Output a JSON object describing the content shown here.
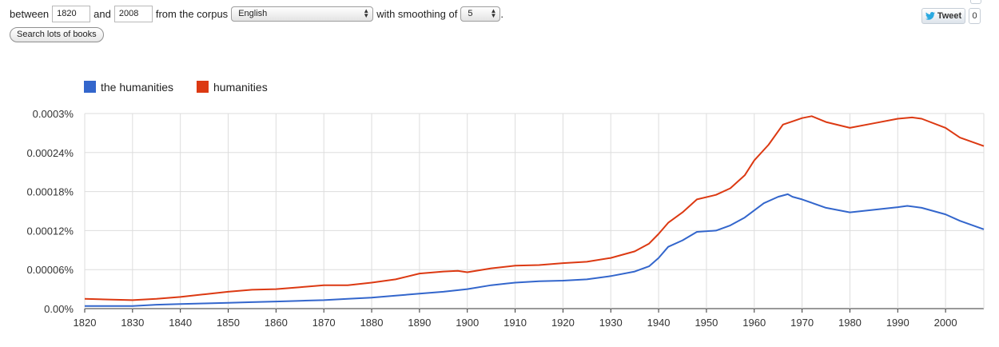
{
  "controls": {
    "between_label": "between",
    "year_start": "1820",
    "and_label": "and",
    "year_end": "2008",
    "corpus_label": "from the corpus",
    "corpus_value": "English",
    "smoothing_label": "with smoothing of",
    "smoothing_value": "5",
    "period": ".",
    "search_button": "Search lots of books"
  },
  "social": {
    "tweet_label": "Tweet",
    "tweet_count": "0"
  },
  "colors": {
    "series_blue": "#3366cc",
    "series_red": "#dc3912",
    "grid": "#dddddd",
    "twitter_bird": "#2aa9e0"
  },
  "chart_data": {
    "type": "line",
    "title": "",
    "xlabel": "",
    "ylabel": "",
    "xlim": [
      1820,
      2008
    ],
    "ylim": [
      0,
      0.0003
    ],
    "grid": true,
    "legend_position": "top-left",
    "x_ticks": [
      "1820",
      "1830",
      "1840",
      "1850",
      "1860",
      "1870",
      "1880",
      "1890",
      "1900",
      "1910",
      "1920",
      "1930",
      "1940",
      "1950",
      "1960",
      "1970",
      "1980",
      "1990",
      "2000"
    ],
    "y_ticks": [
      "0.00%",
      "0.00006%",
      "0.00012%",
      "0.00018%",
      "0.00024%",
      "0.0003%"
    ],
    "y_tick_values": [
      0,
      6e-05,
      0.00012,
      0.00018,
      0.00024,
      0.0003
    ],
    "series": [
      {
        "name": "the humanities",
        "color": "#3366cc",
        "points": [
          [
            1820,
            4e-06
          ],
          [
            1825,
            4e-06
          ],
          [
            1830,
            4e-06
          ],
          [
            1835,
            6e-06
          ],
          [
            1840,
            7e-06
          ],
          [
            1845,
            8e-06
          ],
          [
            1850,
            9e-06
          ],
          [
            1855,
            1e-05
          ],
          [
            1860,
            1.1e-05
          ],
          [
            1865,
            1.2e-05
          ],
          [
            1870,
            1.3e-05
          ],
          [
            1875,
            1.5e-05
          ],
          [
            1880,
            1.7e-05
          ],
          [
            1885,
            2e-05
          ],
          [
            1890,
            2.3e-05
          ],
          [
            1895,
            2.6e-05
          ],
          [
            1900,
            3e-05
          ],
          [
            1905,
            3.6e-05
          ],
          [
            1910,
            4e-05
          ],
          [
            1915,
            4.2e-05
          ],
          [
            1920,
            4.3e-05
          ],
          [
            1925,
            4.5e-05
          ],
          [
            1930,
            5e-05
          ],
          [
            1935,
            5.7e-05
          ],
          [
            1938,
            6.5e-05
          ],
          [
            1940,
            7.8e-05
          ],
          [
            1942,
            9.5e-05
          ],
          [
            1945,
            0.000105
          ],
          [
            1948,
            0.000118
          ],
          [
            1952,
            0.00012
          ],
          [
            1955,
            0.000128
          ],
          [
            1958,
            0.00014
          ],
          [
            1962,
            0.000162
          ],
          [
            1965,
            0.000172
          ],
          [
            1967,
            0.000176
          ],
          [
            1968,
            0.000172
          ],
          [
            1970,
            0.000168
          ],
          [
            1975,
            0.000155
          ],
          [
            1980,
            0.000148
          ],
          [
            1985,
            0.000152
          ],
          [
            1990,
            0.000156
          ],
          [
            1992,
            0.000158
          ],
          [
            1995,
            0.000155
          ],
          [
            2000,
            0.000145
          ],
          [
            2003,
            0.000135
          ],
          [
            2008,
            0.000122
          ]
        ]
      },
      {
        "name": "humanities",
        "color": "#dc3912",
        "points": [
          [
            1820,
            1.5e-05
          ],
          [
            1825,
            1.4e-05
          ],
          [
            1830,
            1.3e-05
          ],
          [
            1835,
            1.5e-05
          ],
          [
            1840,
            1.8e-05
          ],
          [
            1845,
            2.2e-05
          ],
          [
            1850,
            2.6e-05
          ],
          [
            1855,
            2.9e-05
          ],
          [
            1860,
            3e-05
          ],
          [
            1865,
            3.3e-05
          ],
          [
            1870,
            3.6e-05
          ],
          [
            1875,
            3.6e-05
          ],
          [
            1880,
            4e-05
          ],
          [
            1885,
            4.5e-05
          ],
          [
            1890,
            5.4e-05
          ],
          [
            1895,
            5.7e-05
          ],
          [
            1898,
            5.8e-05
          ],
          [
            1900,
            5.6e-05
          ],
          [
            1905,
            6.2e-05
          ],
          [
            1910,
            6.6e-05
          ],
          [
            1915,
            6.7e-05
          ],
          [
            1920,
            7e-05
          ],
          [
            1925,
            7.2e-05
          ],
          [
            1930,
            7.8e-05
          ],
          [
            1935,
            8.8e-05
          ],
          [
            1938,
            0.0001
          ],
          [
            1940,
            0.000115
          ],
          [
            1942,
            0.000132
          ],
          [
            1945,
            0.000148
          ],
          [
            1948,
            0.000168
          ],
          [
            1952,
            0.000175
          ],
          [
            1955,
            0.000185
          ],
          [
            1958,
            0.000205
          ],
          [
            1960,
            0.000228
          ],
          [
            1963,
            0.000252
          ],
          [
            1966,
            0.000283
          ],
          [
            1968,
            0.000288
          ],
          [
            1970,
            0.000293
          ],
          [
            1972,
            0.000296
          ],
          [
            1975,
            0.000287
          ],
          [
            1980,
            0.000278
          ],
          [
            1985,
            0.000285
          ],
          [
            1990,
            0.000292
          ],
          [
            1993,
            0.000294
          ],
          [
            1995,
            0.000292
          ],
          [
            2000,
            0.000278
          ],
          [
            2003,
            0.000263
          ],
          [
            2008,
            0.00025
          ]
        ]
      }
    ]
  }
}
